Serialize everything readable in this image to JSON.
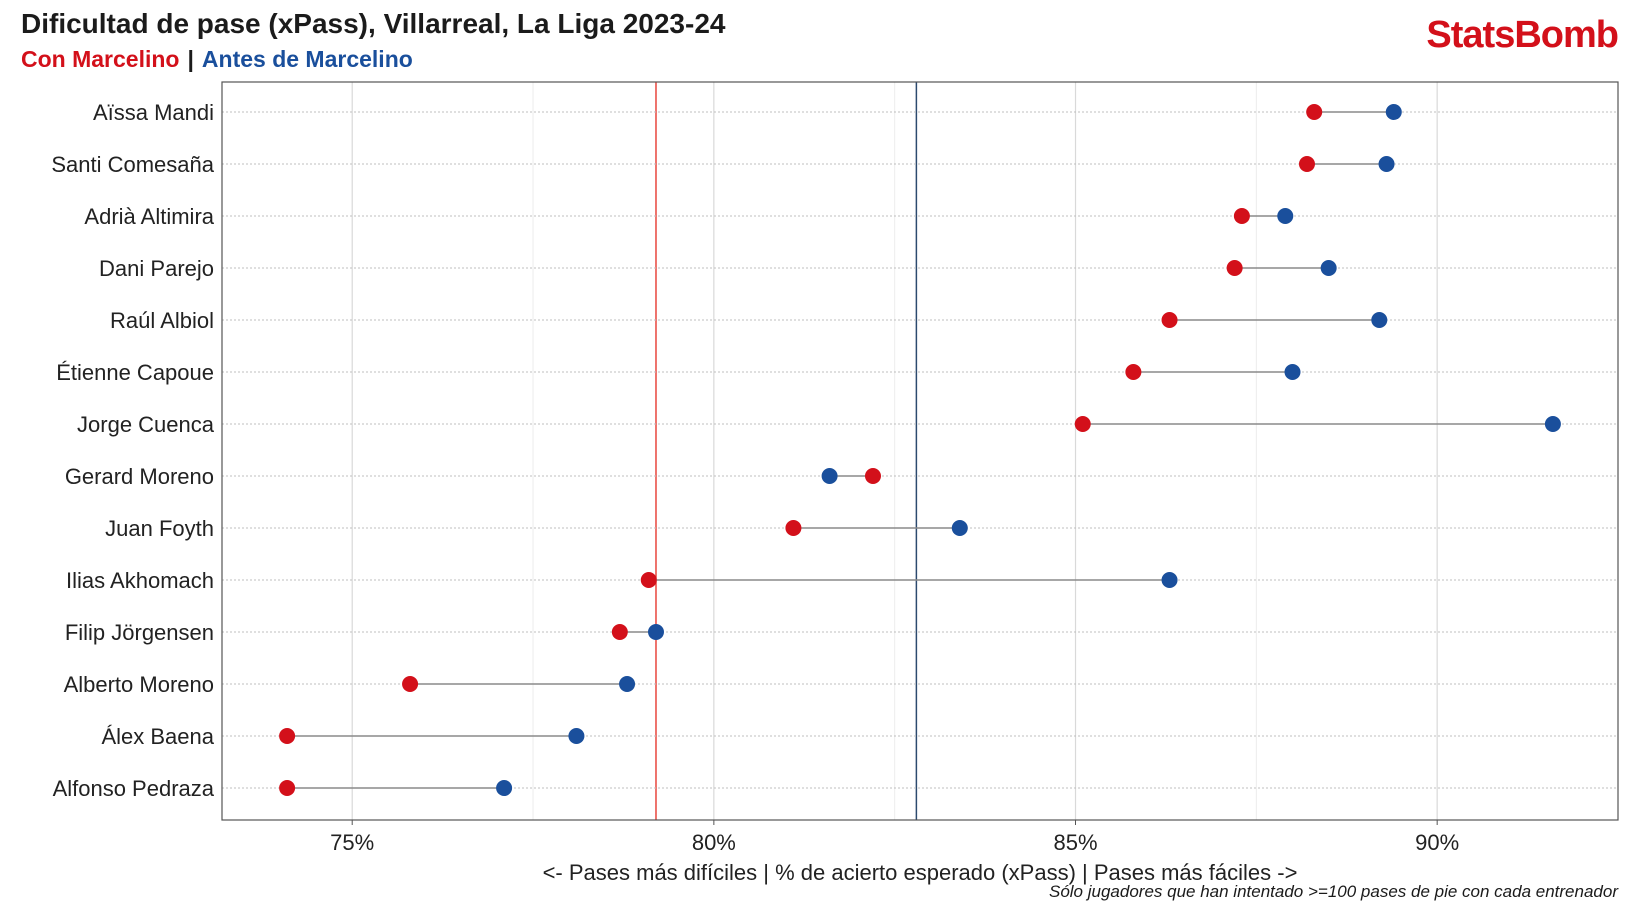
{
  "header": {
    "title": "Dificultad de pase (xPass), Villarreal, La Liga 2023-24",
    "legend_red": "Con Marcelino",
    "legend_sep": "|",
    "legend_blue": "Antes de Marcelino"
  },
  "brand": {
    "logo": "StatsBomb"
  },
  "footnote": "Sólo jugadores que han intentado >=100 pases de pie con cada entrenador",
  "colors": {
    "red": "#d3101a",
    "blue": "#1a4f9c",
    "red_line": "#e8453d",
    "blue_line": "#2c4a6e",
    "connector": "#8a8a8a",
    "grid": "#d9d9d9"
  },
  "chart_data": {
    "type": "dumbbell",
    "title": "Dificultad de pase (xPass), Villarreal, La Liga 2023-24",
    "xlabel": "<- Pases más difíciles | % de acierto esperado (xPass) | Pases más fáciles ->",
    "xlim": [
      73.2,
      92.5
    ],
    "xticks": [
      75,
      80,
      85,
      90
    ],
    "xtick_labels": [
      "75%",
      "80%",
      "85%",
      "90%"
    ],
    "grid": true,
    "series": [
      {
        "name": "Con Marcelino",
        "color": "#d3101a"
      },
      {
        "name": "Antes de Marcelino",
        "color": "#1a4f9c"
      }
    ],
    "reference_lines": [
      {
        "series": "Con Marcelino",
        "value": 79.2
      },
      {
        "series": "Antes de Marcelino",
        "value": 82.8
      }
    ],
    "players": [
      {
        "name": "Aïssa Mandi",
        "con": 88.3,
        "antes": 89.4
      },
      {
        "name": "Santi Comesaña",
        "con": 88.2,
        "antes": 89.3
      },
      {
        "name": "Adrià Altimira",
        "con": 87.3,
        "antes": 87.9
      },
      {
        "name": "Dani Parejo",
        "con": 87.2,
        "antes": 88.5
      },
      {
        "name": "Raúl Albiol",
        "con": 86.3,
        "antes": 89.2
      },
      {
        "name": "Étienne Capoue",
        "con": 85.8,
        "antes": 88.0
      },
      {
        "name": "Jorge Cuenca",
        "con": 85.1,
        "antes": 91.6
      },
      {
        "name": "Gerard Moreno",
        "con": 82.2,
        "antes": 81.6
      },
      {
        "name": "Juan Foyth",
        "con": 81.1,
        "antes": 83.4
      },
      {
        "name": "Ilias Akhomach",
        "con": 79.1,
        "antes": 86.3
      },
      {
        "name": "Filip Jörgensen",
        "con": 78.7,
        "antes": 79.2
      },
      {
        "name": "Alberto Moreno",
        "con": 75.8,
        "antes": 78.8
      },
      {
        "name": "Álex Baena",
        "con": 74.1,
        "antes": 78.1
      },
      {
        "name": "Alfonso Pedraza",
        "con": 74.1,
        "antes": 77.1
      }
    ]
  }
}
